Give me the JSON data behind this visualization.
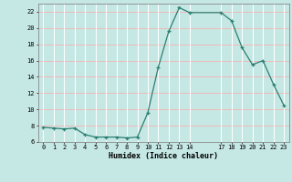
{
  "x": [
    0,
    1,
    2,
    3,
    4,
    5,
    6,
    7,
    8,
    9,
    10,
    11,
    12,
    13,
    14,
    17,
    18,
    19,
    20,
    21,
    22,
    23
  ],
  "y": [
    7.8,
    7.7,
    7.6,
    7.7,
    6.9,
    6.6,
    6.6,
    6.6,
    6.5,
    6.6,
    9.6,
    15.2,
    19.6,
    22.5,
    21.9,
    21.9,
    20.9,
    17.6,
    15.5,
    16.0,
    13.1,
    10.5
  ],
  "xlabel": "Humidex (Indice chaleur)",
  "ylim": [
    6,
    23
  ],
  "xlim": [
    -0.5,
    23.5
  ],
  "yticks": [
    6,
    8,
    10,
    12,
    14,
    16,
    18,
    20,
    22
  ],
  "xticks": [
    0,
    1,
    2,
    3,
    4,
    5,
    6,
    7,
    8,
    9,
    10,
    11,
    12,
    13,
    14,
    17,
    18,
    19,
    20,
    21,
    22,
    23
  ],
  "line_color": "#2d7f72",
  "bg_color": "#c5e8e5",
  "vgrid_color": "#ffffff",
  "hgrid_color": "#f0b8b8",
  "spine_color": "#888888"
}
